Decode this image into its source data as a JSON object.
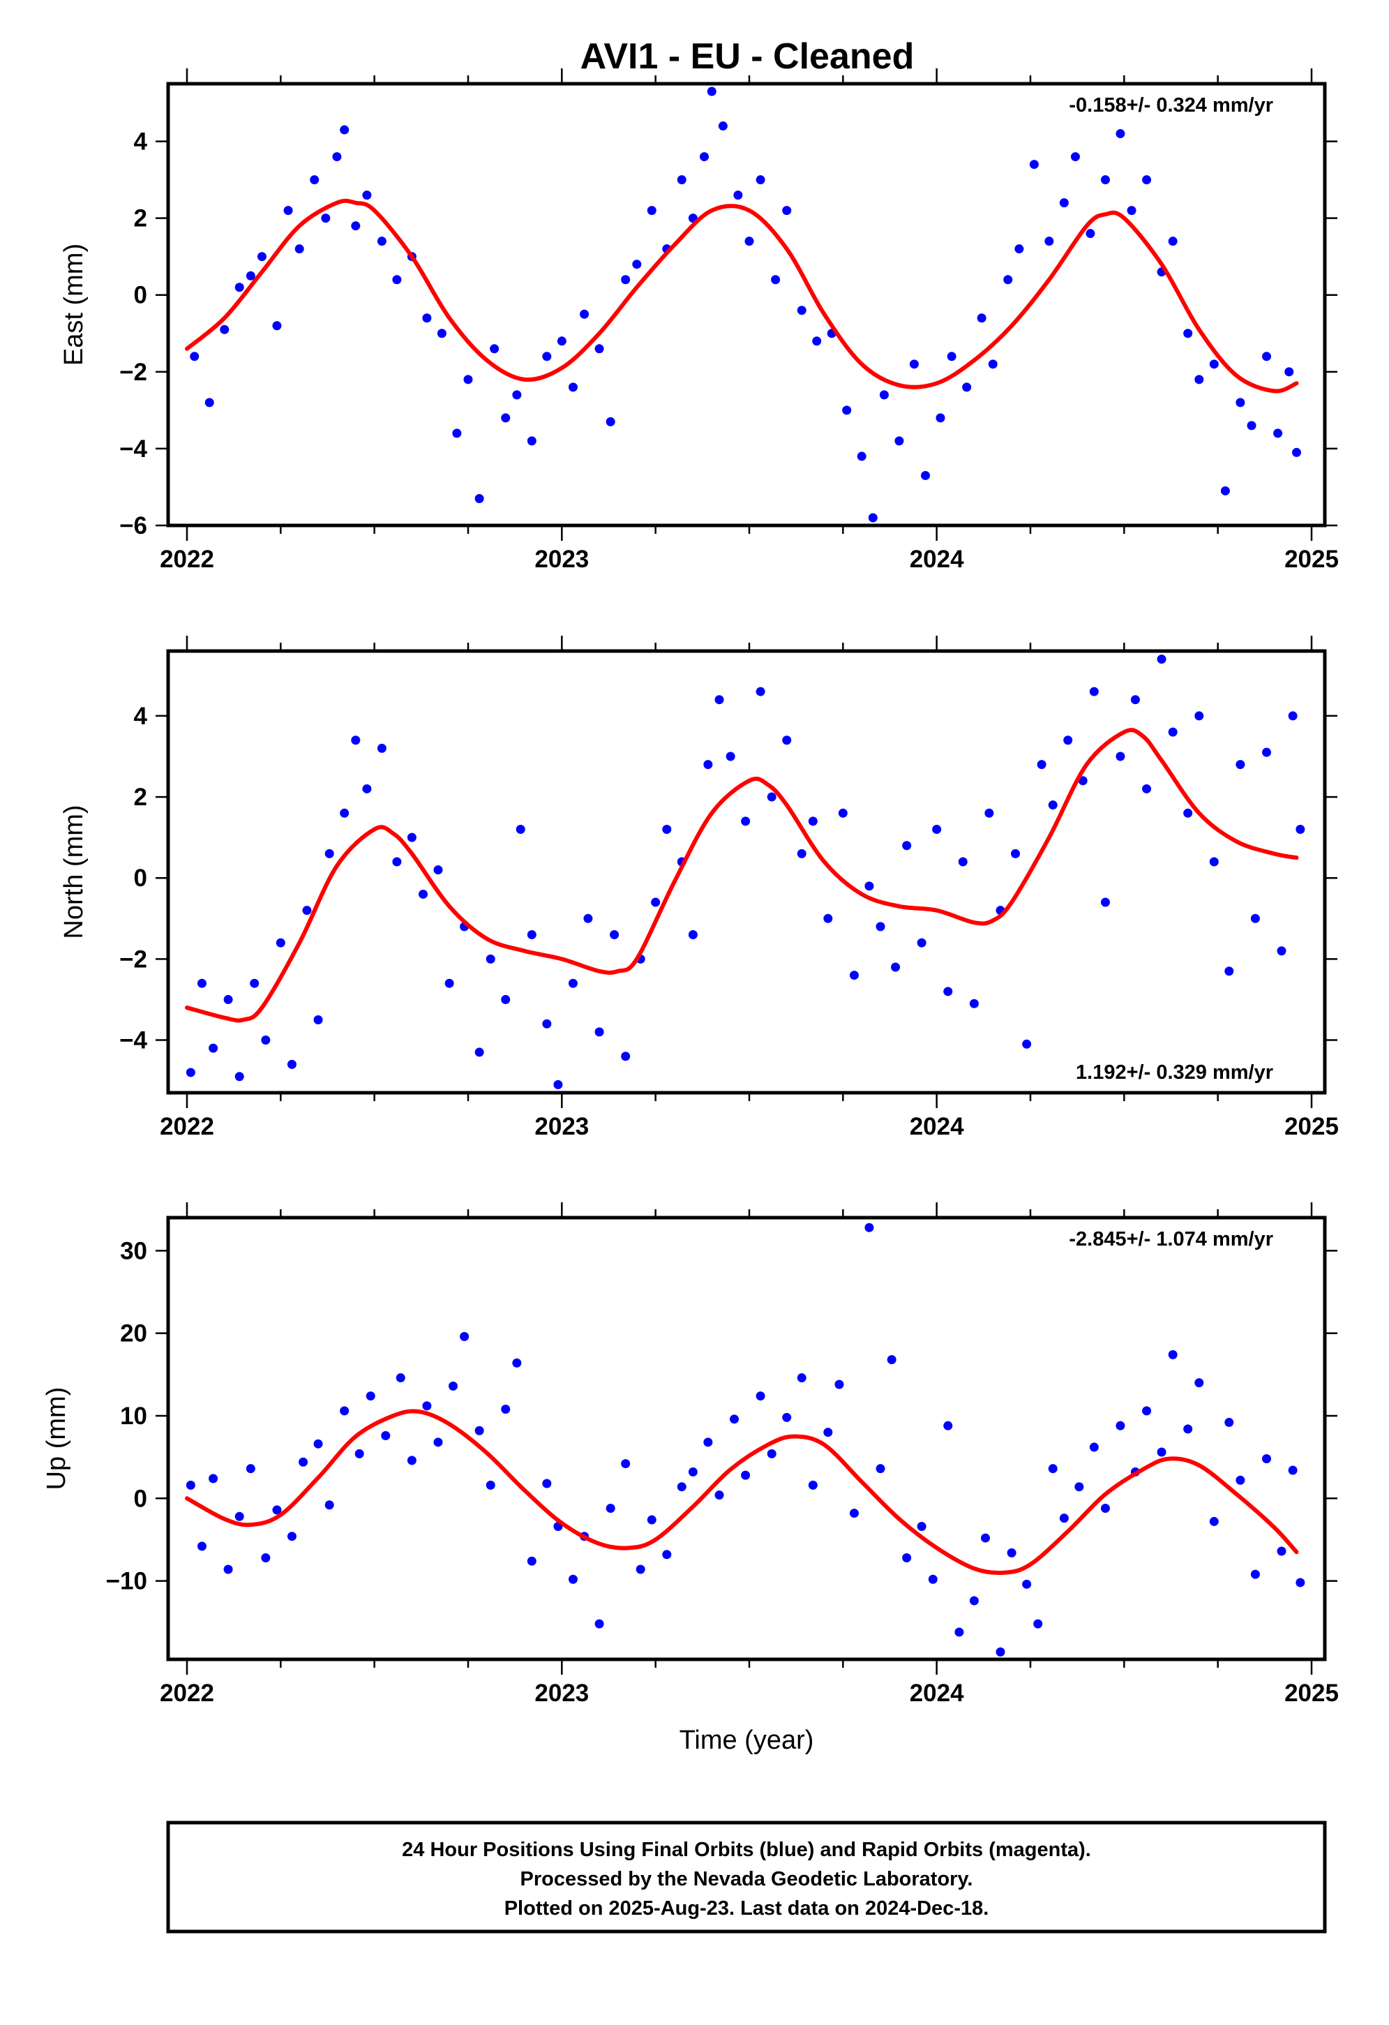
{
  "figure": {
    "title": "AVI1  - EU - Cleaned",
    "xlabel": "Time (year)",
    "footer": [
      "24 Hour Positions Using Final Orbits (blue) and Rapid Orbits (magenta).",
      "Processed by the Nevada Geodetic Laboratory.",
      "Plotted on 2025-Aug-23. Last data on 2024-Dec-18."
    ],
    "colors": {
      "points": "#0000ff",
      "fit": "#ff0000",
      "frame": "#000000"
    }
  },
  "chart_data": [
    {
      "type": "scatter",
      "component": "east",
      "ylabel": "East (mm)",
      "xlim": [
        2022.0,
        2025.0
      ],
      "ylim": [
        -6.0,
        5.5
      ],
      "xticks": [
        2022,
        2023,
        2024,
        2025
      ],
      "yticks": [
        -6,
        -4,
        -2,
        0,
        2,
        4
      ],
      "rate_annotation": "-0.158+/- 0.324 mm/yr",
      "rate_position": "top-right",
      "fit_line": {
        "color": "#ff0000",
        "x": [
          2022.0,
          2022.1,
          2022.2,
          2022.3,
          2022.4,
          2022.45,
          2022.5,
          2022.6,
          2022.7,
          2022.8,
          2022.9,
          2023.0,
          2023.1,
          2023.2,
          2023.3,
          2023.4,
          2023.5,
          2023.6,
          2023.7,
          2023.8,
          2023.9,
          2024.0,
          2024.1,
          2024.2,
          2024.3,
          2024.4,
          2024.45,
          2024.5,
          2024.6,
          2024.7,
          2024.8,
          2024.9,
          2024.96
        ],
        "y": [
          -1.4,
          -0.6,
          0.6,
          1.8,
          2.4,
          2.4,
          2.2,
          1.0,
          -0.6,
          -1.7,
          -2.2,
          -1.9,
          -1.0,
          0.2,
          1.3,
          2.2,
          2.2,
          1.2,
          -0.5,
          -1.8,
          -2.35,
          -2.3,
          -1.7,
          -0.8,
          0.4,
          1.8,
          2.1,
          2.0,
          0.8,
          -0.9,
          -2.1,
          -2.5,
          -2.3
        ]
      },
      "points": [
        [
          2022.02,
          -1.6
        ],
        [
          2022.06,
          -2.8
        ],
        [
          2022.1,
          -0.9
        ],
        [
          2022.14,
          0.2
        ],
        [
          2022.17,
          0.5
        ],
        [
          2022.2,
          1.0
        ],
        [
          2022.24,
          -0.8
        ],
        [
          2022.27,
          2.2
        ],
        [
          2022.3,
          1.2
        ],
        [
          2022.34,
          3.0
        ],
        [
          2022.37,
          2.0
        ],
        [
          2022.4,
          3.6
        ],
        [
          2022.42,
          4.3
        ],
        [
          2022.45,
          1.8
        ],
        [
          2022.48,
          2.6
        ],
        [
          2022.52,
          1.4
        ],
        [
          2022.56,
          0.4
        ],
        [
          2022.6,
          1.0
        ],
        [
          2022.64,
          -0.6
        ],
        [
          2022.68,
          -1.0
        ],
        [
          2022.72,
          -3.6
        ],
        [
          2022.75,
          -2.2
        ],
        [
          2022.78,
          -5.3
        ],
        [
          2022.82,
          -1.4
        ],
        [
          2022.85,
          -3.2
        ],
        [
          2022.88,
          -2.6
        ],
        [
          2022.92,
          -3.8
        ],
        [
          2022.96,
          -1.6
        ],
        [
          2023.0,
          -1.2
        ],
        [
          2023.03,
          -2.4
        ],
        [
          2023.06,
          -0.5
        ],
        [
          2023.1,
          -1.4
        ],
        [
          2023.13,
          -3.3
        ],
        [
          2023.17,
          0.4
        ],
        [
          2023.2,
          0.8
        ],
        [
          2023.24,
          2.2
        ],
        [
          2023.28,
          1.2
        ],
        [
          2023.32,
          3.0
        ],
        [
          2023.35,
          2.0
        ],
        [
          2023.38,
          3.6
        ],
        [
          2023.4,
          5.3
        ],
        [
          2023.43,
          4.4
        ],
        [
          2023.47,
          2.6
        ],
        [
          2023.5,
          1.4
        ],
        [
          2023.53,
          3.0
        ],
        [
          2023.57,
          0.4
        ],
        [
          2023.6,
          2.2
        ],
        [
          2023.64,
          -0.4
        ],
        [
          2023.68,
          -1.2
        ],
        [
          2023.72,
          -1.0
        ],
        [
          2023.76,
          -3.0
        ],
        [
          2023.8,
          -4.2
        ],
        [
          2023.83,
          -5.8
        ],
        [
          2023.86,
          -2.6
        ],
        [
          2023.9,
          -3.8
        ],
        [
          2023.94,
          -1.8
        ],
        [
          2023.97,
          -4.7
        ],
        [
          2024.01,
          -3.2
        ],
        [
          2024.04,
          -1.6
        ],
        [
          2024.08,
          -2.4
        ],
        [
          2024.12,
          -0.6
        ],
        [
          2024.15,
          -1.8
        ],
        [
          2024.19,
          0.4
        ],
        [
          2024.22,
          1.2
        ],
        [
          2024.26,
          3.4
        ],
        [
          2024.3,
          1.4
        ],
        [
          2024.34,
          2.4
        ],
        [
          2024.37,
          3.6
        ],
        [
          2024.41,
          1.6
        ],
        [
          2024.45,
          3.0
        ],
        [
          2024.49,
          4.2
        ],
        [
          2024.52,
          2.2
        ],
        [
          2024.56,
          3.0
        ],
        [
          2024.6,
          0.6
        ],
        [
          2024.63,
          1.4
        ],
        [
          2024.67,
          -1.0
        ],
        [
          2024.7,
          -2.2
        ],
        [
          2024.74,
          -1.8
        ],
        [
          2024.77,
          -5.1
        ],
        [
          2024.81,
          -2.8
        ],
        [
          2024.84,
          -3.4
        ],
        [
          2024.88,
          -1.6
        ],
        [
          2024.91,
          -3.6
        ],
        [
          2024.94,
          -2.0
        ],
        [
          2024.96,
          -4.1
        ]
      ]
    },
    {
      "type": "scatter",
      "component": "north",
      "ylabel": "North (mm)",
      "xlim": [
        2022.0,
        2025.0
      ],
      "ylim": [
        -5.3,
        5.6
      ],
      "xticks": [
        2022,
        2023,
        2024,
        2025
      ],
      "yticks": [
        -4,
        -2,
        0,
        2,
        4
      ],
      "rate_annotation": "1.192+/- 0.329 mm/yr",
      "rate_position": "bottom-right",
      "fit_line": {
        "color": "#ff0000",
        "x": [
          2022.0,
          2022.1,
          2022.15,
          2022.2,
          2022.3,
          2022.4,
          2022.5,
          2022.55,
          2022.6,
          2022.7,
          2022.8,
          2022.9,
          2023.0,
          2023.1,
          2023.15,
          2023.2,
          2023.3,
          2023.4,
          2023.5,
          2023.55,
          2023.6,
          2023.7,
          2023.8,
          2023.9,
          2024.0,
          2024.1,
          2024.15,
          2024.2,
          2024.3,
          2024.4,
          2024.5,
          2024.55,
          2024.6,
          2024.7,
          2024.8,
          2024.9,
          2024.96
        ],
        "y": [
          -3.2,
          -3.45,
          -3.5,
          -3.2,
          -1.6,
          0.3,
          1.2,
          1.1,
          0.6,
          -0.7,
          -1.5,
          -1.8,
          -2.0,
          -2.3,
          -2.3,
          -2.0,
          -0.1,
          1.6,
          2.4,
          2.3,
          1.8,
          0.4,
          -0.4,
          -0.7,
          -0.8,
          -1.1,
          -1.05,
          -0.6,
          1.0,
          2.8,
          3.6,
          3.5,
          2.9,
          1.6,
          0.9,
          0.6,
          0.5
        ]
      },
      "points": [
        [
          2022.01,
          -4.8
        ],
        [
          2022.04,
          -2.6
        ],
        [
          2022.07,
          -4.2
        ],
        [
          2022.11,
          -3.0
        ],
        [
          2022.14,
          -4.9
        ],
        [
          2022.18,
          -2.6
        ],
        [
          2022.21,
          -4.0
        ],
        [
          2022.25,
          -1.6
        ],
        [
          2022.28,
          -4.6
        ],
        [
          2022.32,
          -0.8
        ],
        [
          2022.35,
          -3.5
        ],
        [
          2022.38,
          0.6
        ],
        [
          2022.42,
          1.6
        ],
        [
          2022.45,
          3.4
        ],
        [
          2022.48,
          2.2
        ],
        [
          2022.52,
          3.2
        ],
        [
          2022.56,
          0.4
        ],
        [
          2022.6,
          1.0
        ],
        [
          2022.63,
          -0.4
        ],
        [
          2022.67,
          0.2
        ],
        [
          2022.7,
          -2.6
        ],
        [
          2022.74,
          -1.2
        ],
        [
          2022.78,
          -4.3
        ],
        [
          2022.81,
          -2.0
        ],
        [
          2022.85,
          -3.0
        ],
        [
          2022.89,
          1.2
        ],
        [
          2022.92,
          -1.4
        ],
        [
          2022.96,
          -3.6
        ],
        [
          2022.99,
          -5.1
        ],
        [
          2023.03,
          -2.6
        ],
        [
          2023.07,
          -1.0
        ],
        [
          2023.1,
          -3.8
        ],
        [
          2023.14,
          -1.4
        ],
        [
          2023.17,
          -4.4
        ],
        [
          2023.21,
          -2.0
        ],
        [
          2023.25,
          -0.6
        ],
        [
          2023.28,
          1.2
        ],
        [
          2023.32,
          0.4
        ],
        [
          2023.35,
          -1.4
        ],
        [
          2023.39,
          2.8
        ],
        [
          2023.42,
          4.4
        ],
        [
          2023.45,
          3.0
        ],
        [
          2023.49,
          1.4
        ],
        [
          2023.53,
          4.6
        ],
        [
          2023.56,
          2.0
        ],
        [
          2023.6,
          3.4
        ],
        [
          2023.64,
          0.6
        ],
        [
          2023.67,
          1.4
        ],
        [
          2023.71,
          -1.0
        ],
        [
          2023.75,
          1.6
        ],
        [
          2023.78,
          -2.4
        ],
        [
          2023.82,
          -0.2
        ],
        [
          2023.85,
          -1.2
        ],
        [
          2023.89,
          -2.2
        ],
        [
          2023.92,
          0.8
        ],
        [
          2023.96,
          -1.6
        ],
        [
          2024.0,
          1.2
        ],
        [
          2024.03,
          -2.8
        ],
        [
          2024.07,
          0.4
        ],
        [
          2024.1,
          -3.1
        ],
        [
          2024.14,
          1.6
        ],
        [
          2024.17,
          -0.8
        ],
        [
          2024.21,
          0.6
        ],
        [
          2024.24,
          -4.1
        ],
        [
          2024.28,
          2.8
        ],
        [
          2024.31,
          1.8
        ],
        [
          2024.35,
          3.4
        ],
        [
          2024.39,
          2.4
        ],
        [
          2024.42,
          4.6
        ],
        [
          2024.45,
          -0.6
        ],
        [
          2024.49,
          3.0
        ],
        [
          2024.53,
          4.4
        ],
        [
          2024.56,
          2.2
        ],
        [
          2024.6,
          5.4
        ],
        [
          2024.63,
          3.6
        ],
        [
          2024.67,
          1.6
        ],
        [
          2024.7,
          4.0
        ],
        [
          2024.74,
          0.4
        ],
        [
          2024.78,
          -2.3
        ],
        [
          2024.81,
          2.8
        ],
        [
          2024.85,
          -1.0
        ],
        [
          2024.88,
          3.1
        ],
        [
          2024.92,
          -1.8
        ],
        [
          2024.95,
          4.0
        ],
        [
          2024.97,
          1.2
        ]
      ]
    },
    {
      "type": "scatter",
      "component": "up",
      "ylabel": "Up (mm)",
      "xlim": [
        2022.0,
        2025.0
      ],
      "ylim": [
        -19.5,
        34.0
      ],
      "xticks": [
        2022,
        2023,
        2024,
        2025
      ],
      "yticks": [
        -10,
        0,
        10,
        20,
        30
      ],
      "rate_annotation": "-2.845+/- 1.074 mm/yr",
      "rate_position": "top-right",
      "fit_line": {
        "color": "#ff0000",
        "x": [
          2022.0,
          2022.1,
          2022.17,
          2022.25,
          2022.35,
          2022.45,
          2022.55,
          2022.62,
          2022.7,
          2022.8,
          2022.9,
          2023.0,
          2023.1,
          2023.18,
          2023.25,
          2023.35,
          2023.45,
          2023.55,
          2023.62,
          2023.7,
          2023.8,
          2023.9,
          2024.0,
          2024.1,
          2024.18,
          2024.25,
          2024.35,
          2024.45,
          2024.55,
          2024.62,
          2024.7,
          2024.8,
          2024.9,
          2024.96
        ],
        "y": [
          0.0,
          -2.5,
          -3.2,
          -2.0,
          2.5,
          7.5,
          10.0,
          10.5,
          9.0,
          5.5,
          1.0,
          -3.0,
          -5.5,
          -6.0,
          -5.0,
          -1.0,
          3.5,
          6.5,
          7.5,
          6.5,
          2.0,
          -2.5,
          -6.0,
          -8.5,
          -9.0,
          -8.0,
          -4.0,
          0.5,
          3.5,
          4.8,
          4.0,
          0.5,
          -3.5,
          -6.5
        ]
      },
      "points": [
        [
          2022.01,
          1.6
        ],
        [
          2022.04,
          -5.8
        ],
        [
          2022.07,
          2.4
        ],
        [
          2022.11,
          -8.6
        ],
        [
          2022.14,
          -2.2
        ],
        [
          2022.17,
          3.6
        ],
        [
          2022.21,
          -7.2
        ],
        [
          2022.24,
          -1.4
        ],
        [
          2022.28,
          -4.6
        ],
        [
          2022.31,
          4.4
        ],
        [
          2022.35,
          6.6
        ],
        [
          2022.38,
          -0.8
        ],
        [
          2022.42,
          10.6
        ],
        [
          2022.46,
          5.4
        ],
        [
          2022.49,
          12.4
        ],
        [
          2022.53,
          7.6
        ],
        [
          2022.57,
          14.6
        ],
        [
          2022.6,
          4.6
        ],
        [
          2022.64,
          11.2
        ],
        [
          2022.67,
          6.8
        ],
        [
          2022.71,
          13.6
        ],
        [
          2022.74,
          19.6
        ],
        [
          2022.78,
          8.2
        ],
        [
          2022.81,
          1.6
        ],
        [
          2022.85,
          10.8
        ],
        [
          2022.88,
          16.4
        ],
        [
          2022.92,
          -7.6
        ],
        [
          2022.96,
          1.8
        ],
        [
          2022.99,
          -3.4
        ],
        [
          2023.03,
          -9.8
        ],
        [
          2023.06,
          -4.6
        ],
        [
          2023.1,
          -15.2
        ],
        [
          2023.13,
          -1.2
        ],
        [
          2023.17,
          4.2
        ],
        [
          2023.21,
          -8.6
        ],
        [
          2023.24,
          -2.6
        ],
        [
          2023.28,
          -6.8
        ],
        [
          2023.32,
          1.4
        ],
        [
          2023.35,
          3.2
        ],
        [
          2023.39,
          6.8
        ],
        [
          2023.42,
          0.4
        ],
        [
          2023.46,
          9.6
        ],
        [
          2023.49,
          2.8
        ],
        [
          2023.53,
          12.4
        ],
        [
          2023.56,
          5.4
        ],
        [
          2023.6,
          9.8
        ],
        [
          2023.64,
          14.6
        ],
        [
          2023.67,
          1.6
        ],
        [
          2023.71,
          8.0
        ],
        [
          2023.74,
          13.8
        ],
        [
          2023.78,
          -1.8
        ],
        [
          2023.82,
          32.8
        ],
        [
          2023.85,
          3.6
        ],
        [
          2023.88,
          16.8
        ],
        [
          2023.92,
          -7.2
        ],
        [
          2023.96,
          -3.4
        ],
        [
          2023.99,
          -9.8
        ],
        [
          2024.03,
          8.8
        ],
        [
          2024.06,
          -16.2
        ],
        [
          2024.1,
          -12.4
        ],
        [
          2024.13,
          -4.8
        ],
        [
          2024.17,
          -18.6
        ],
        [
          2024.2,
          -6.6
        ],
        [
          2024.24,
          -10.4
        ],
        [
          2024.27,
          -15.2
        ],
        [
          2024.31,
          3.6
        ],
        [
          2024.34,
          -2.4
        ],
        [
          2024.38,
          1.4
        ],
        [
          2024.42,
          6.2
        ],
        [
          2024.45,
          -1.2
        ],
        [
          2024.49,
          8.8
        ],
        [
          2024.53,
          3.2
        ],
        [
          2024.56,
          10.6
        ],
        [
          2024.6,
          5.6
        ],
        [
          2024.63,
          17.4
        ],
        [
          2024.67,
          8.4
        ],
        [
          2024.7,
          14.0
        ],
        [
          2024.74,
          -2.8
        ],
        [
          2024.78,
          9.2
        ],
        [
          2024.81,
          2.2
        ],
        [
          2024.85,
          -9.2
        ],
        [
          2024.88,
          4.8
        ],
        [
          2024.92,
          -6.4
        ],
        [
          2024.95,
          3.4
        ],
        [
          2024.97,
          -10.2
        ]
      ]
    }
  ]
}
